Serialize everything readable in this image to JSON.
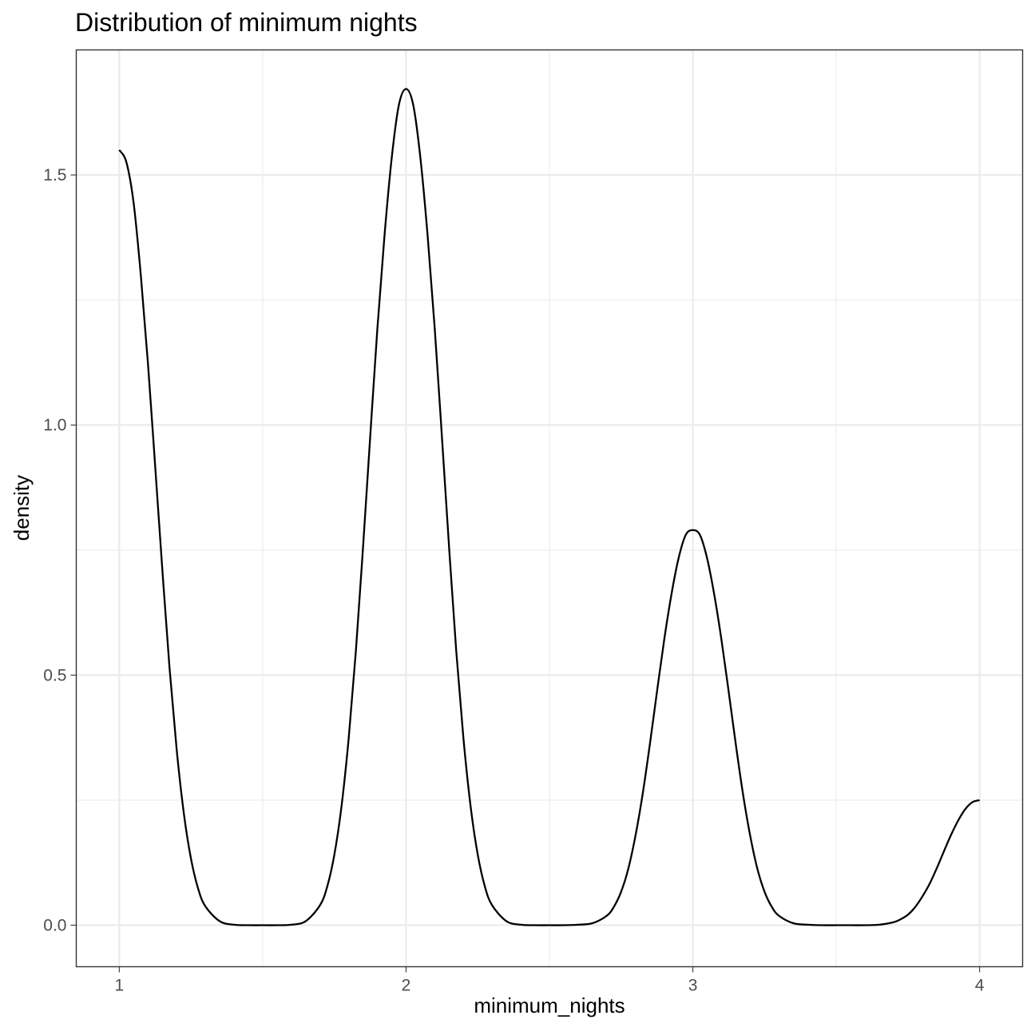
{
  "chart_data": {
    "type": "line",
    "title": "Distribution of minimum nights",
    "xlabel": "minimum_nights",
    "ylabel": "density",
    "xlim": [
      0.85,
      4.15
    ],
    "ylim": [
      -0.083,
      1.75
    ],
    "x_ticks": [
      1,
      2,
      3,
      4
    ],
    "x_tick_labels": [
      "1",
      "2",
      "3",
      "4"
    ],
    "x_minor_ticks": [
      1.5,
      2.5,
      3.5
    ],
    "y_ticks": [
      0.0,
      0.5,
      1.0,
      1.5
    ],
    "y_tick_labels": [
      "0.0",
      "0.5",
      "1.0",
      "1.5"
    ],
    "y_minor_ticks": [
      0.25,
      0.75,
      1.25
    ],
    "grid": true,
    "legend": "none",
    "series": [
      {
        "x": [
          1.0,
          1.025,
          1.05,
          1.075,
          1.1,
          1.125,
          1.15,
          1.175,
          1.2,
          1.225,
          1.25,
          1.275,
          1.3,
          1.35,
          1.4,
          1.45,
          1.5,
          1.55,
          1.6,
          1.65,
          1.7,
          1.725,
          1.75,
          1.775,
          1.8,
          1.825,
          1.85,
          1.875,
          1.9,
          1.925,
          1.95,
          1.975,
          2.0,
          2.025,
          2.05,
          2.075,
          2.1,
          2.125,
          2.15,
          2.175,
          2.2,
          2.225,
          2.25,
          2.275,
          2.3,
          2.35,
          2.4,
          2.45,
          2.5,
          2.55,
          2.6,
          2.65,
          2.7,
          2.725,
          2.75,
          2.775,
          2.8,
          2.825,
          2.85,
          2.875,
          2.9,
          2.925,
          2.95,
          2.975,
          3.0,
          3.025,
          3.05,
          3.075,
          3.1,
          3.125,
          3.15,
          3.175,
          3.2,
          3.225,
          3.25,
          3.275,
          3.3,
          3.35,
          3.4,
          3.45,
          3.5,
          3.55,
          3.6,
          3.65,
          3.7,
          3.725,
          3.75,
          3.775,
          3.8,
          3.825,
          3.85,
          3.875,
          3.9,
          3.925,
          3.95,
          3.975,
          4.0
        ],
        "y": [
          1.55,
          1.525,
          1.444,
          1.3,
          1.123,
          0.919,
          0.712,
          0.516,
          0.352,
          0.224,
          0.133,
          0.073,
          0.038,
          0.008,
          0.001,
          0.0,
          0.0,
          0.0,
          0.001,
          0.008,
          0.04,
          0.077,
          0.141,
          0.238,
          0.374,
          0.548,
          0.756,
          0.977,
          1.193,
          1.38,
          1.534,
          1.64,
          1.672,
          1.64,
          1.534,
          1.38,
          1.193,
          0.977,
          0.756,
          0.548,
          0.374,
          0.238,
          0.141,
          0.077,
          0.04,
          0.008,
          0.001,
          0.0,
          0.0,
          0.0,
          0.001,
          0.004,
          0.019,
          0.037,
          0.067,
          0.113,
          0.179,
          0.262,
          0.361,
          0.467,
          0.57,
          0.66,
          0.733,
          0.78,
          0.79,
          0.78,
          0.733,
          0.66,
          0.57,
          0.467,
          0.361,
          0.262,
          0.179,
          0.113,
          0.067,
          0.037,
          0.019,
          0.004,
          0.001,
          0.0,
          0.0,
          0.0,
          0.0,
          0.001,
          0.006,
          0.012,
          0.021,
          0.036,
          0.057,
          0.082,
          0.113,
          0.147,
          0.18,
          0.209,
          0.232,
          0.246,
          0.25
        ]
      }
    ]
  }
}
